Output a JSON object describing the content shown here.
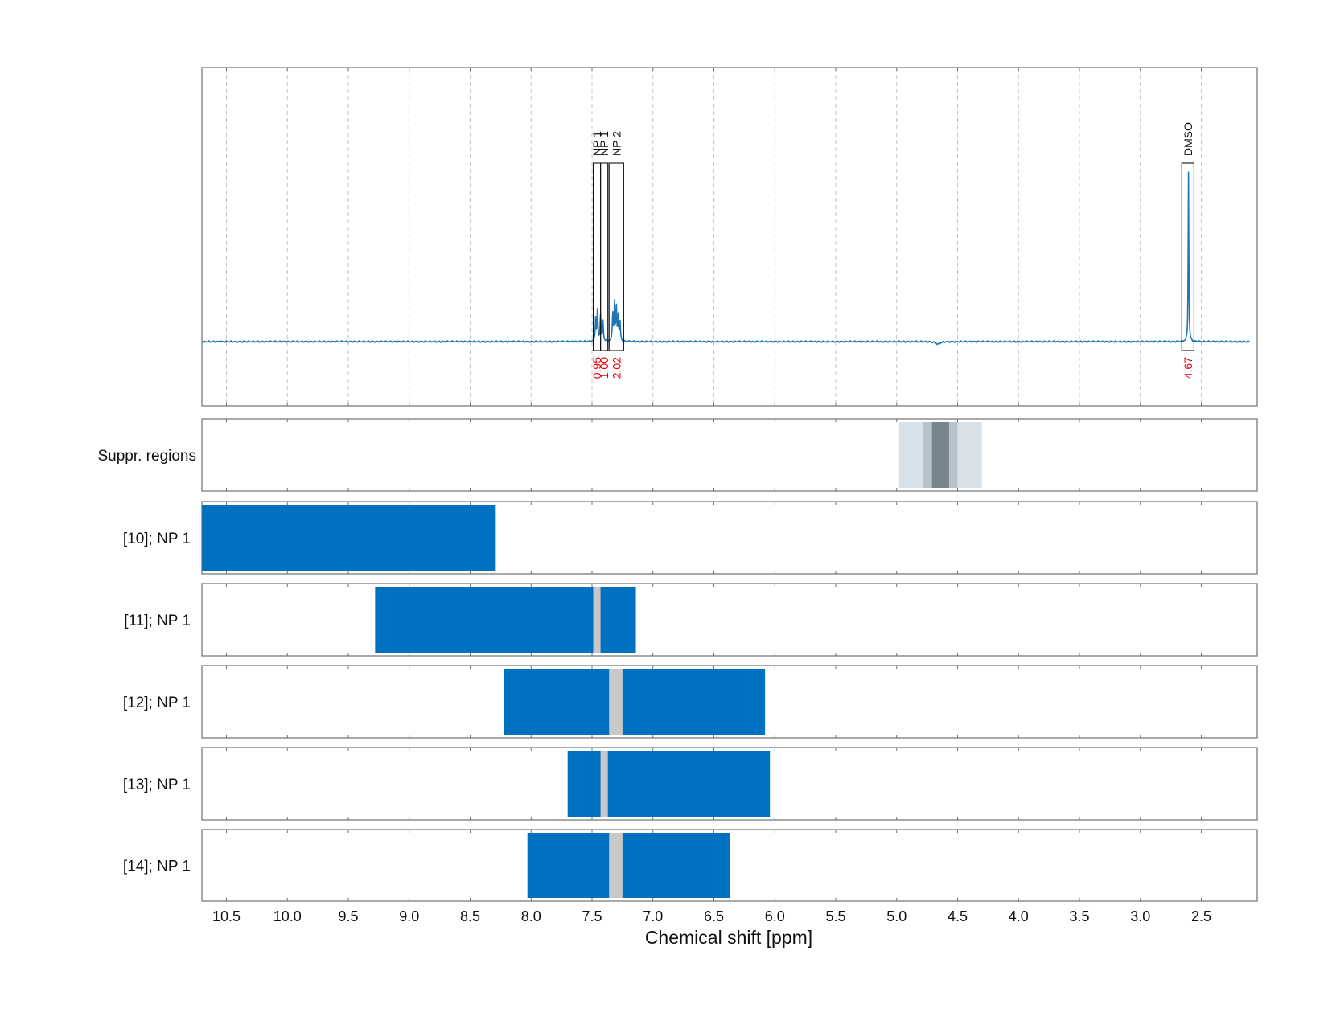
{
  "chart_data": {
    "type": "nmr-spectrum",
    "xlabel": "Chemical shift [ppm]",
    "xlim": [
      10.7,
      2.1
    ],
    "x_reversed": true,
    "xticks": [
      10.5,
      10.0,
      9.5,
      9.0,
      8.5,
      8.0,
      7.5,
      7.0,
      6.5,
      6.0,
      5.5,
      5.0,
      4.5,
      4.0,
      3.5,
      3.0,
      2.5
    ],
    "xtick_labels": [
      "10.5",
      "10.0",
      "9.5",
      "9.0",
      "8.5",
      "8.0",
      "7.5",
      "7.0",
      "6.5",
      "6.0",
      "5.5",
      "5.0",
      "4.5",
      "4.0",
      "3.5",
      "3.0",
      "2.5"
    ],
    "grid": true,
    "line_color": "#1f77b4",
    "spectrum_peaks": [
      {
        "ppm": 7.47,
        "height": 0.14,
        "width": 0.004
      },
      {
        "ppm": 7.455,
        "height": 0.18,
        "width": 0.004
      },
      {
        "ppm": 7.43,
        "height": 0.16,
        "width": 0.004
      },
      {
        "ppm": 7.41,
        "height": 0.12,
        "width": 0.004
      },
      {
        "ppm": 7.33,
        "height": 0.16,
        "width": 0.004
      },
      {
        "ppm": 7.315,
        "height": 0.22,
        "width": 0.004
      },
      {
        "ppm": 7.3,
        "height": 0.19,
        "width": 0.004
      },
      {
        "ppm": 7.285,
        "height": 0.15,
        "width": 0.004
      },
      {
        "ppm": 7.27,
        "height": 0.11,
        "width": 0.004
      },
      {
        "ppm": 2.605,
        "height": 1.0,
        "width": 0.003
      },
      {
        "ppm": 4.66,
        "height": -0.015,
        "width": 0.02
      }
    ],
    "peak_regions": [
      {
        "label": "NP 1",
        "from": 7.49,
        "to": 7.43,
        "integral": "0.95"
      },
      {
        "label": "NP 1",
        "from": 7.43,
        "to": 7.37,
        "integral": "1.00"
      },
      {
        "label": "NP 2",
        "from": 7.36,
        "to": 7.24,
        "integral": "2.02"
      },
      {
        "label": "DMSO",
        "from": 2.66,
        "to": 2.56,
        "integral": "4.67"
      }
    ],
    "suppression_row": {
      "label": "Suppr. regions",
      "bands": [
        {
          "from": 4.98,
          "to": 4.3,
          "shade": "#dae2e9"
        },
        {
          "from": 4.78,
          "to": 4.5,
          "shade": "#b6c3ce"
        },
        {
          "from": 4.71,
          "to": 4.57,
          "shade": "#77858f"
        }
      ]
    },
    "range_rows": [
      {
        "label": "[10]; NP 1",
        "from": 10.7,
        "to": 8.29,
        "excluded": []
      },
      {
        "label": "[11]; NP 1",
        "from": 9.28,
        "to": 7.14,
        "excluded": [
          {
            "from": 7.49,
            "to": 7.43
          }
        ]
      },
      {
        "label": "[12]; NP 1",
        "from": 8.22,
        "to": 6.08,
        "excluded": [
          {
            "from": 7.36,
            "to": 7.25
          }
        ]
      },
      {
        "label": "[13]; NP 1",
        "from": 7.7,
        "to": 6.04,
        "excluded": [
          {
            "from": 7.43,
            "to": 7.37
          }
        ]
      },
      {
        "label": "[14]; NP 1",
        "from": 8.03,
        "to": 6.37,
        "excluded": [
          {
            "from": 7.36,
            "to": 7.25
          }
        ]
      }
    ],
    "range_color": "#0070c0",
    "excluded_color": "#c8c8c8",
    "integral_color": "#e8000b"
  }
}
